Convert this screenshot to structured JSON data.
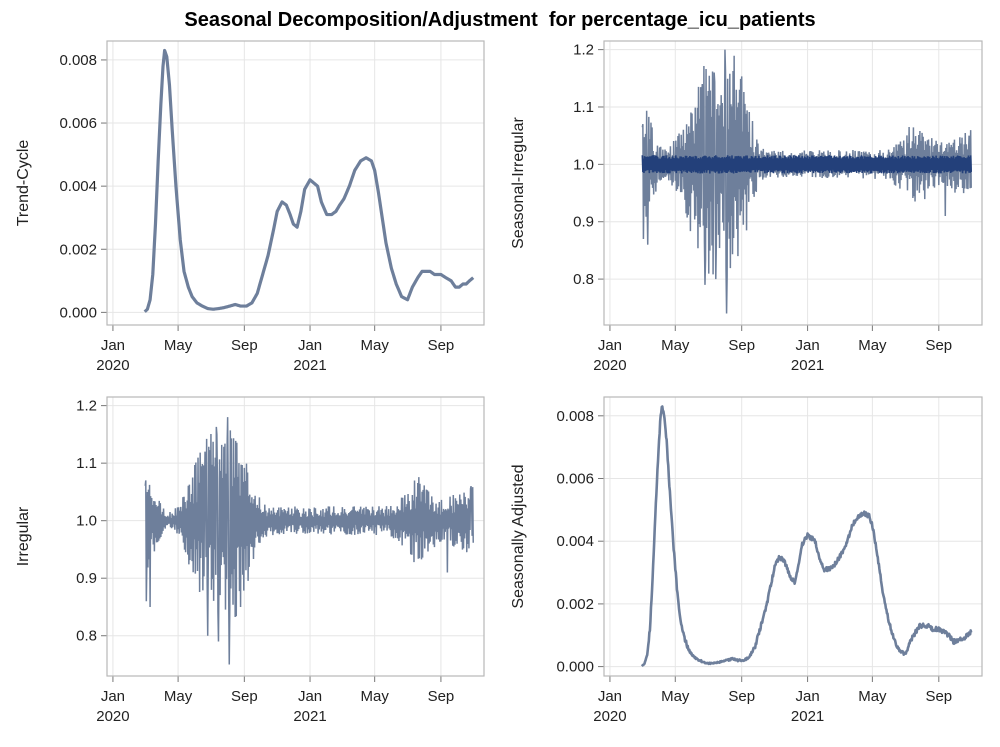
{
  "title": "Seasonal Decomposition/Adjustment  for percentage_icu_patients",
  "colors": {
    "series": "#6e7f9b",
    "series_dark": "#23407a",
    "grid": "#e6e6e6",
    "frame": "#b8b8b8",
    "background": "#ffffff"
  },
  "chart_data": [
    {
      "id": "trend",
      "type": "line",
      "ylabel": "Trend-Cycle",
      "xlabel": "",
      "x_range": [
        "2019-12-21",
        "2021-11-20"
      ],
      "ylim": [
        -0.0004,
        0.0086
      ],
      "yticks": [
        "0.000",
        "0.002",
        "0.004",
        "0.006",
        "0.008"
      ],
      "xticks": [
        {
          "date": "2020-01-01",
          "label": "Jan",
          "sub": "2020"
        },
        {
          "date": "2020-05-01",
          "label": "May",
          "sub": ""
        },
        {
          "date": "2020-09-01",
          "label": "Sep",
          "sub": ""
        },
        {
          "date": "2021-01-01",
          "label": "Jan",
          "sub": "2021"
        },
        {
          "date": "2021-05-01",
          "label": "May",
          "sub": ""
        },
        {
          "date": "2021-09-01",
          "label": "Sep",
          "sub": ""
        }
      ],
      "grid": true,
      "series": [
        {
          "x": [
            "2020-02-29",
            "2020-03-05",
            "2020-03-10",
            "2020-03-15",
            "2020-03-20",
            "2020-03-25",
            "2020-03-30",
            "2020-04-03",
            "2020-04-06",
            "2020-04-10",
            "2020-04-15",
            "2020-04-20",
            "2020-04-27",
            "2020-05-05",
            "2020-05-12",
            "2020-05-20",
            "2020-05-27",
            "2020-06-05",
            "2020-06-15",
            "2020-06-25",
            "2020-07-05",
            "2020-07-15",
            "2020-07-25",
            "2020-08-05",
            "2020-08-15",
            "2020-08-25",
            "2020-09-05",
            "2020-09-15",
            "2020-09-25",
            "2020-10-05",
            "2020-10-15",
            "2020-10-25",
            "2020-11-01",
            "2020-11-10",
            "2020-11-18",
            "2020-11-25",
            "2020-12-01",
            "2020-12-08",
            "2020-12-15",
            "2020-12-22",
            "2021-01-01",
            "2021-01-08",
            "2021-01-15",
            "2021-01-22",
            "2021-02-01",
            "2021-02-10",
            "2021-02-18",
            "2021-02-25",
            "2021-03-05",
            "2021-03-15",
            "2021-03-25",
            "2021-04-05",
            "2021-04-15",
            "2021-04-25",
            "2021-05-01",
            "2021-05-08",
            "2021-05-15",
            "2021-05-22",
            "2021-06-01",
            "2021-06-10",
            "2021-06-20",
            "2021-07-01",
            "2021-07-10",
            "2021-07-20",
            "2021-07-28",
            "2021-08-05",
            "2021-08-12",
            "2021-08-20",
            "2021-09-01",
            "2021-09-10",
            "2021-09-20",
            "2021-09-28",
            "2021-10-05",
            "2021-10-12",
            "2021-10-18",
            "2021-10-24",
            "2021-10-31"
          ],
          "values": [
            2e-05,
            0.0001,
            0.0004,
            0.0012,
            0.0028,
            0.0048,
            0.0066,
            0.0078,
            0.0083,
            0.0081,
            0.0072,
            0.0058,
            0.004,
            0.0023,
            0.0013,
            0.0008,
            0.0005,
            0.0003,
            0.0002,
            0.00012,
            0.0001,
            0.00012,
            0.00015,
            0.0002,
            0.00025,
            0.0002,
            0.0002,
            0.0003,
            0.0006,
            0.0012,
            0.0018,
            0.0026,
            0.0032,
            0.0035,
            0.0034,
            0.0031,
            0.0028,
            0.0027,
            0.0032,
            0.0039,
            0.0042,
            0.0041,
            0.004,
            0.0035,
            0.0031,
            0.0031,
            0.0032,
            0.0034,
            0.0036,
            0.004,
            0.0045,
            0.0048,
            0.0049,
            0.0048,
            0.0045,
            0.0038,
            0.003,
            0.0022,
            0.0014,
            0.0009,
            0.0005,
            0.0004,
            0.0008,
            0.0011,
            0.0013,
            0.0013,
            0.0013,
            0.0012,
            0.0012,
            0.0011,
            0.001,
            0.0008,
            0.0008,
            0.0009,
            0.0009,
            0.001,
            0.0011
          ]
        }
      ]
    },
    {
      "id": "seasonal_irregular",
      "type": "line",
      "ylabel": "Seasonal-Irregular",
      "xlabel": "",
      "x_range": [
        "2019-12-21",
        "2021-11-20"
      ],
      "ylim": [
        0.72,
        1.215
      ],
      "yticks": [
        "0.8",
        "0.9",
        "1.0",
        "1.1",
        "1.2"
      ],
      "xticks": [
        {
          "date": "2020-01-01",
          "label": "Jan",
          "sub": "2020"
        },
        {
          "date": "2020-05-01",
          "label": "May",
          "sub": ""
        },
        {
          "date": "2020-09-01",
          "label": "Sep",
          "sub": ""
        },
        {
          "date": "2021-01-01",
          "label": "Jan",
          "sub": "2021"
        },
        {
          "date": "2021-05-01",
          "label": "May",
          "sub": ""
        },
        {
          "date": "2021-09-01",
          "label": "Sep",
          "sub": ""
        }
      ],
      "grid": true,
      "series": [
        {
          "x_start": "2020-03-01",
          "x_end": "2021-10-31",
          "envelope_dates": [
            "2020-03-01",
            "2020-03-08",
            "2020-03-15",
            "2020-03-25",
            "2020-04-05",
            "2020-04-15",
            "2020-04-25",
            "2020-05-05",
            "2020-05-15",
            "2020-05-25",
            "2020-06-05",
            "2020-06-15",
            "2020-06-25",
            "2020-07-05",
            "2020-07-15",
            "2020-07-25",
            "2020-08-05",
            "2020-08-15",
            "2020-08-25",
            "2020-09-05",
            "2020-09-15",
            "2020-09-25",
            "2020-10-05",
            "2020-11-01",
            "2020-12-01",
            "2021-01-01",
            "2021-02-01",
            "2021-03-01",
            "2021-04-01",
            "2021-05-01",
            "2021-06-01",
            "2021-07-01",
            "2021-07-10",
            "2021-07-20",
            "2021-08-01",
            "2021-08-15",
            "2021-09-01",
            "2021-09-15",
            "2021-10-01",
            "2021-10-31"
          ],
          "envelope": [
            0.14,
            0.1,
            0.08,
            0.05,
            0.03,
            0.03,
            0.04,
            0.05,
            0.08,
            0.12,
            0.14,
            0.16,
            0.18,
            0.2,
            0.2,
            0.15,
            0.2,
            0.22,
            0.18,
            0.14,
            0.1,
            0.06,
            0.03,
            0.025,
            0.025,
            0.025,
            0.025,
            0.025,
            0.025,
            0.025,
            0.03,
            0.05,
            0.07,
            0.08,
            0.07,
            0.05,
            0.04,
            0.04,
            0.05,
            0.06
          ],
          "band_halfwidth": 0.016,
          "extremes": [
            {
              "x": "2020-03-02",
              "y": 1.07
            },
            {
              "x": "2020-03-03",
              "y": 0.87
            },
            {
              "x": "2020-03-11",
              "y": 0.86
            },
            {
              "x": "2020-06-20",
              "y": 1.14
            },
            {
              "x": "2020-06-25",
              "y": 0.79
            },
            {
              "x": "2020-07-12",
              "y": 1.16
            },
            {
              "x": "2020-07-15",
              "y": 0.8
            },
            {
              "x": "2020-08-01",
              "y": 1.2
            },
            {
              "x": "2020-08-04",
              "y": 0.74
            },
            {
              "x": "2020-08-22",
              "y": 1.13
            },
            {
              "x": "2020-08-25",
              "y": 0.84
            },
            {
              "x": "2021-09-13",
              "y": 0.91
            },
            {
              "x": "2021-10-27",
              "y": 1.05
            }
          ]
        }
      ]
    },
    {
      "id": "irregular",
      "type": "line",
      "ylabel": "Irregular",
      "xlabel": "",
      "x_range": [
        "2019-12-21",
        "2021-11-20"
      ],
      "ylim": [
        0.73,
        1.215
      ],
      "yticks": [
        "0.8",
        "0.9",
        "1.0",
        "1.1",
        "1.2"
      ],
      "xticks": [
        {
          "date": "2020-01-01",
          "label": "Jan",
          "sub": "2020"
        },
        {
          "date": "2020-05-01",
          "label": "May",
          "sub": ""
        },
        {
          "date": "2020-09-01",
          "label": "Sep",
          "sub": ""
        },
        {
          "date": "2021-01-01",
          "label": "Jan",
          "sub": "2021"
        },
        {
          "date": "2021-05-01",
          "label": "May",
          "sub": ""
        },
        {
          "date": "2021-09-01",
          "label": "Sep",
          "sub": ""
        }
      ],
      "grid": true,
      "series": [
        {
          "x_start": "2020-03-01",
          "x_end": "2021-10-31",
          "envelope_dates": [
            "2020-03-01",
            "2020-03-08",
            "2020-03-15",
            "2020-03-25",
            "2020-04-05",
            "2020-04-15",
            "2020-04-25",
            "2020-05-05",
            "2020-05-15",
            "2020-05-25",
            "2020-06-05",
            "2020-06-15",
            "2020-06-25",
            "2020-07-05",
            "2020-07-15",
            "2020-07-25",
            "2020-08-05",
            "2020-08-15",
            "2020-08-25",
            "2020-09-05",
            "2020-09-15",
            "2020-09-25",
            "2020-10-05",
            "2020-11-01",
            "2020-12-01",
            "2021-01-01",
            "2021-02-01",
            "2021-03-01",
            "2021-04-01",
            "2021-05-01",
            "2021-06-01",
            "2021-07-01",
            "2021-07-10",
            "2021-07-20",
            "2021-08-01",
            "2021-08-15",
            "2021-09-01",
            "2021-09-15",
            "2021-10-01",
            "2021-10-31"
          ],
          "envelope": [
            0.13,
            0.1,
            0.07,
            0.04,
            0.02,
            0.015,
            0.02,
            0.04,
            0.06,
            0.09,
            0.12,
            0.14,
            0.16,
            0.17,
            0.17,
            0.15,
            0.17,
            0.18,
            0.15,
            0.12,
            0.08,
            0.05,
            0.03,
            0.025,
            0.025,
            0.025,
            0.025,
            0.025,
            0.025,
            0.025,
            0.03,
            0.05,
            0.07,
            0.08,
            0.07,
            0.05,
            0.04,
            0.04,
            0.05,
            0.06
          ],
          "band_halfwidth": 0,
          "extremes": [
            {
              "x": "2020-03-02",
              "y": 1.07
            },
            {
              "x": "2020-03-03",
              "y": 0.86
            },
            {
              "x": "2020-03-10",
              "y": 0.85
            },
            {
              "x": "2020-06-20",
              "y": 1.12
            },
            {
              "x": "2020-06-25",
              "y": 0.8
            },
            {
              "x": "2020-07-12",
              "y": 1.15
            },
            {
              "x": "2020-07-15",
              "y": 0.79
            },
            {
              "x": "2020-08-01",
              "y": 1.18
            },
            {
              "x": "2020-08-04",
              "y": 0.75
            },
            {
              "x": "2020-08-22",
              "y": 1.1
            },
            {
              "x": "2020-08-25",
              "y": 0.85
            },
            {
              "x": "2021-09-13",
              "y": 0.91
            },
            {
              "x": "2021-10-27",
              "y": 1.06
            }
          ]
        }
      ]
    },
    {
      "id": "seasonally_adjusted",
      "type": "line",
      "ylabel": "Seasonally Adjusted",
      "xlabel": "",
      "x_range": [
        "2019-12-21",
        "2021-11-20"
      ],
      "ylim": [
        -0.0003,
        0.0086
      ],
      "yticks": [
        "0.000",
        "0.002",
        "0.004",
        "0.006",
        "0.008"
      ],
      "xticks": [
        {
          "date": "2020-01-01",
          "label": "Jan",
          "sub": "2020"
        },
        {
          "date": "2020-05-01",
          "label": "May",
          "sub": ""
        },
        {
          "date": "2020-09-01",
          "label": "Sep",
          "sub": ""
        },
        {
          "date": "2021-01-01",
          "label": "Jan",
          "sub": "2021"
        },
        {
          "date": "2021-05-01",
          "label": "May",
          "sub": ""
        },
        {
          "date": "2021-09-01",
          "label": "Sep",
          "sub": ""
        }
      ],
      "grid": true,
      "series": [
        {
          "x": [
            "2020-02-29",
            "2020-03-05",
            "2020-03-10",
            "2020-03-15",
            "2020-03-20",
            "2020-03-25",
            "2020-03-30",
            "2020-04-03",
            "2020-04-06",
            "2020-04-10",
            "2020-04-15",
            "2020-04-20",
            "2020-04-27",
            "2020-05-05",
            "2020-05-12",
            "2020-05-20",
            "2020-05-27",
            "2020-06-05",
            "2020-06-15",
            "2020-06-25",
            "2020-07-05",
            "2020-07-15",
            "2020-07-25",
            "2020-08-05",
            "2020-08-15",
            "2020-08-25",
            "2020-09-05",
            "2020-09-15",
            "2020-09-25",
            "2020-10-05",
            "2020-10-15",
            "2020-10-25",
            "2020-11-01",
            "2020-11-10",
            "2020-11-18",
            "2020-11-25",
            "2020-12-01",
            "2020-12-08",
            "2020-12-15",
            "2020-12-22",
            "2021-01-01",
            "2021-01-08",
            "2021-01-15",
            "2021-01-22",
            "2021-02-01",
            "2021-02-10",
            "2021-02-18",
            "2021-02-25",
            "2021-03-05",
            "2021-03-15",
            "2021-03-25",
            "2021-04-05",
            "2021-04-15",
            "2021-04-25",
            "2021-05-01",
            "2021-05-08",
            "2021-05-15",
            "2021-05-22",
            "2021-06-01",
            "2021-06-10",
            "2021-06-20",
            "2021-07-01",
            "2021-07-10",
            "2021-07-20",
            "2021-07-28",
            "2021-08-05",
            "2021-08-12",
            "2021-08-20",
            "2021-09-01",
            "2021-09-10",
            "2021-09-20",
            "2021-09-28",
            "2021-10-05",
            "2021-10-12",
            "2021-10-18",
            "2021-10-24",
            "2021-10-31"
          ],
          "values": [
            2e-05,
            0.0001,
            0.0004,
            0.0012,
            0.0028,
            0.0048,
            0.0066,
            0.0078,
            0.0083,
            0.0081,
            0.0072,
            0.0058,
            0.004,
            0.0023,
            0.0013,
            0.0008,
            0.0005,
            0.0003,
            0.0002,
            0.00012,
            0.0001,
            0.00012,
            0.00015,
            0.0002,
            0.00025,
            0.0002,
            0.0002,
            0.0003,
            0.0006,
            0.0012,
            0.0018,
            0.0026,
            0.0032,
            0.0035,
            0.0034,
            0.0031,
            0.0028,
            0.0027,
            0.0032,
            0.0039,
            0.0042,
            0.0041,
            0.004,
            0.0035,
            0.0031,
            0.0031,
            0.0032,
            0.0034,
            0.0036,
            0.004,
            0.0045,
            0.0048,
            0.0049,
            0.0048,
            0.0045,
            0.0038,
            0.003,
            0.0022,
            0.0014,
            0.0009,
            0.0005,
            0.0004,
            0.0008,
            0.0011,
            0.0013,
            0.0013,
            0.0013,
            0.0012,
            0.0012,
            0.0011,
            0.001,
            0.0008,
            0.0008,
            0.0009,
            0.0009,
            0.001,
            0.0011
          ],
          "jitter": 7e-05
        }
      ]
    }
  ]
}
